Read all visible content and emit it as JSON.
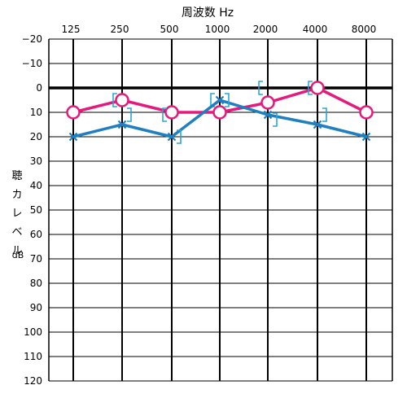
{
  "chart_data": {
    "type": "line",
    "title": "周波数  Hz",
    "ylabel_chars": [
      "聴",
      "カ",
      "レ",
      "ベ",
      "ル"
    ],
    "yunit": "dB",
    "x": [
      "125",
      "250",
      "500",
      "1000",
      "2000",
      "4000",
      "8000"
    ],
    "y_ticks": [
      "−20",
      "−10",
      "0",
      "10",
      "20",
      "30",
      "40",
      "50",
      "60",
      "70",
      "80",
      "90",
      "100",
      "110",
      "120"
    ],
    "ylim": [
      -20,
      120
    ],
    "y_inverted": true,
    "grid": true,
    "reference_line": 0,
    "series": [
      {
        "symbol": "o",
        "color": "#e6197d",
        "values": [
          10,
          5,
          10,
          10,
          6,
          0,
          10
        ],
        "bone_bracket_side": "left",
        "bone_values": [
          null,
          5,
          11,
          5,
          0,
          0,
          null
        ]
      },
      {
        "symbol": "x",
        "color": "#1f7fc0",
        "values": [
          20,
          15,
          20,
          5,
          11,
          15,
          20
        ],
        "bone_bracket_side": "right",
        "bone_values": [
          null,
          11,
          20,
          5,
          13,
          11,
          null
        ]
      }
    ]
  }
}
